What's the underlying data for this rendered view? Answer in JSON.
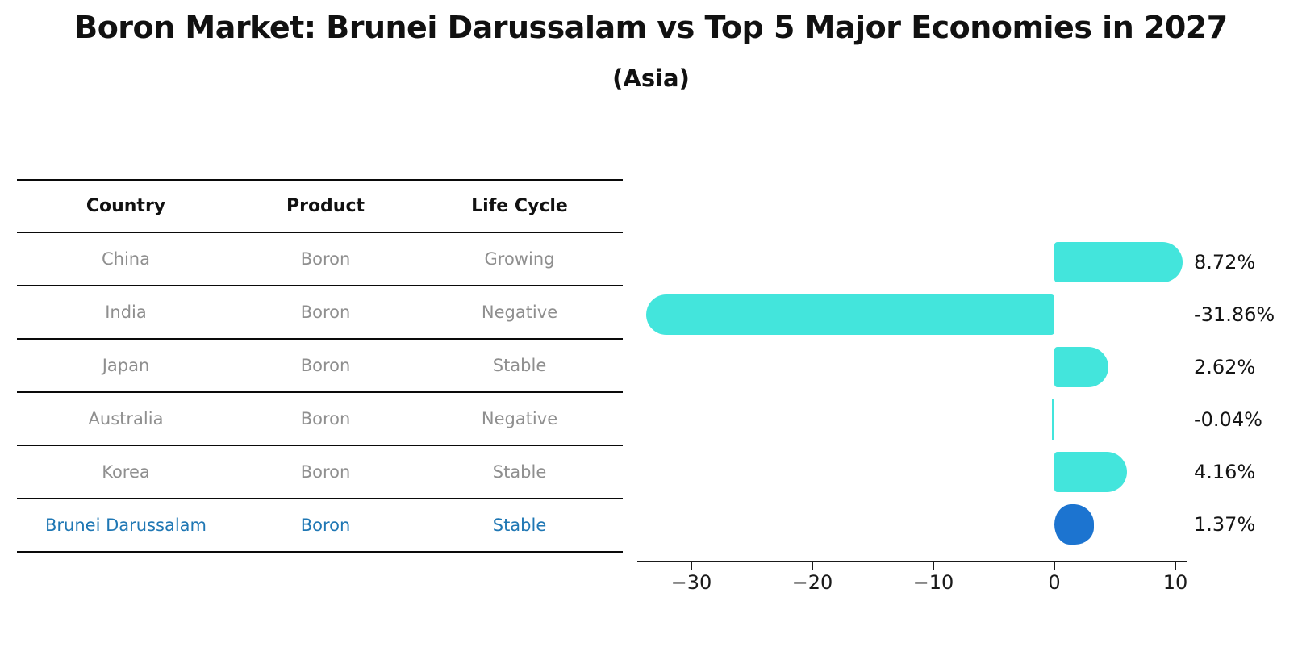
{
  "title": "Boron Market: Brunei Darussalam vs Top 5 Major Economies in 2027",
  "subtitle": "(Asia)",
  "colors": {
    "bar_default": "#43E5DC",
    "bar_highlight": "#1C74D0",
    "highlight_text": "#1f77b4",
    "row_text": "#8f8f8f",
    "header_text": "#111111",
    "axis": "#1a1a1a",
    "background": "#ffffff"
  },
  "table": {
    "headers": [
      "Country",
      "Product",
      "Life Cycle"
    ],
    "rows": [
      {
        "country": "China",
        "product": "Boron",
        "life_cycle": "Growing",
        "highlight": false
      },
      {
        "country": "India",
        "product": "Boron",
        "life_cycle": "Negative",
        "highlight": false
      },
      {
        "country": "Japan",
        "product": "Boron",
        "life_cycle": "Stable",
        "highlight": false
      },
      {
        "country": "Australia",
        "product": "Boron",
        "life_cycle": "Negative",
        "highlight": false
      },
      {
        "country": "Korea",
        "product": "Boron",
        "life_cycle": "Stable",
        "highlight": false
      },
      {
        "country": "Brunei Darussalam",
        "product": "Boron",
        "life_cycle": "Stable",
        "highlight": true
      }
    ]
  },
  "chart_data": {
    "type": "bar",
    "orientation": "horizontal",
    "title": "Boron Market: Brunei Darussalam vs Top 5 Major Economies in 2027",
    "subtitle": "(Asia)",
    "categories": [
      "China",
      "India",
      "Japan",
      "Australia",
      "Korea",
      "Brunei Darussalam"
    ],
    "values": [
      8.72,
      -31.86,
      2.62,
      -0.04,
      4.16,
      1.37
    ],
    "value_labels": [
      "8.72%",
      "-31.86%",
      "2.62%",
      "-0.04%",
      "4.16%",
      "1.37%"
    ],
    "highlight_index": 5,
    "x_ticks": [
      -30,
      -20,
      -10,
      0,
      10
    ],
    "x_tick_labels": [
      "−30",
      "−20",
      "−10",
      "0",
      "10"
    ],
    "xlim": [
      -34.5,
      11
    ],
    "grid": false,
    "legend": false,
    "ylabel": "",
    "xlabel": ""
  }
}
